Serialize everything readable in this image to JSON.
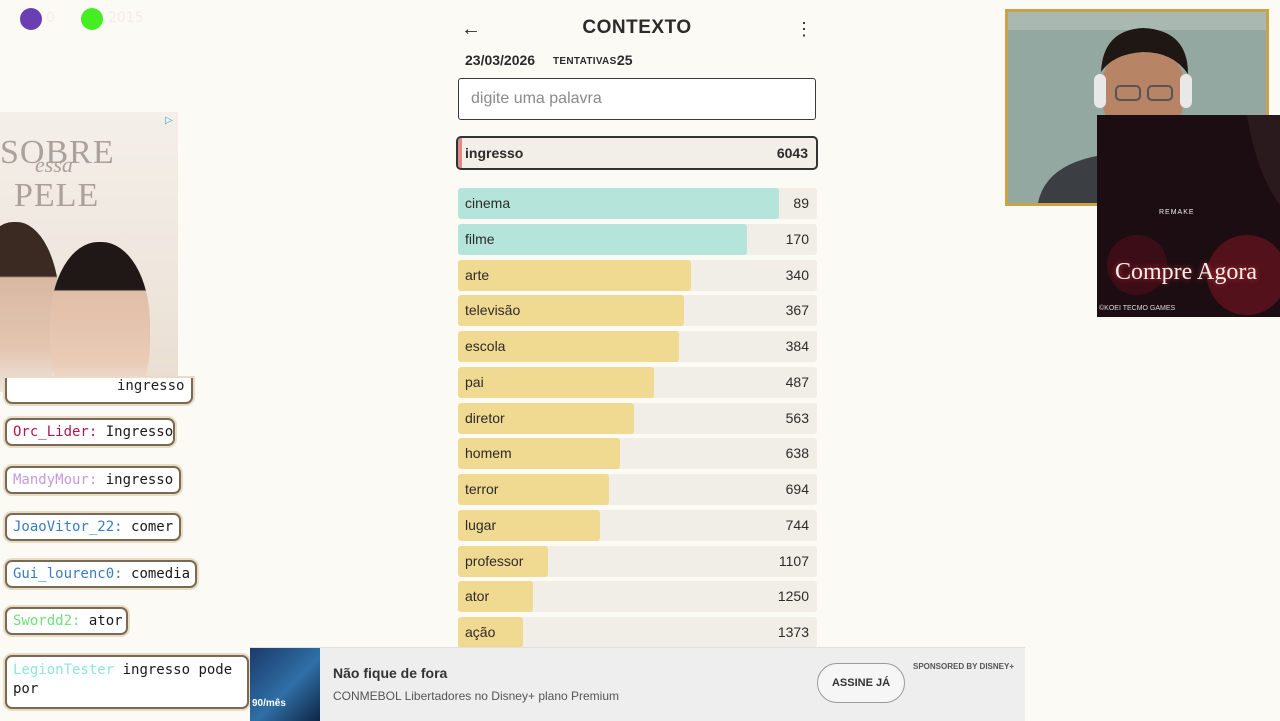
{
  "overlay": {
    "indicator_1": {
      "color": "#6b3fb4",
      "count": "0"
    },
    "indicator_2": {
      "color": "#44ee22",
      "count": "2015"
    }
  },
  "header": {
    "title": "CONTEXTO",
    "date": "23/03/2026",
    "attempts_label": "TENTATIVAS:",
    "attempts_value": "25"
  },
  "search": {
    "placeholder": "digite uma palavra",
    "value": ""
  },
  "last_guess": {
    "word": "ingresso",
    "rank": "6043",
    "color": "#e08787"
  },
  "guesses": [
    {
      "word": "cinema",
      "rank": "89",
      "fill": 0.895,
      "color": "#b4e4da"
    },
    {
      "word": "filme",
      "rank": "170",
      "fill": 0.805,
      "color": "#b4e4da"
    },
    {
      "word": "arte",
      "rank": "340",
      "fill": 0.65,
      "color": "#f0d991"
    },
    {
      "word": "televisão",
      "rank": "367",
      "fill": 0.63,
      "color": "#f0d991"
    },
    {
      "word": "escola",
      "rank": "384",
      "fill": 0.615,
      "color": "#f0d991"
    },
    {
      "word": "pai",
      "rank": "487",
      "fill": 0.545,
      "color": "#f0d991"
    },
    {
      "word": "diretor",
      "rank": "563",
      "fill": 0.49,
      "color": "#f0d991"
    },
    {
      "word": "homem",
      "rank": "638",
      "fill": 0.45,
      "color": "#f0d991"
    },
    {
      "word": "terror",
      "rank": "694",
      "fill": 0.42,
      "color": "#f0d991"
    },
    {
      "word": "lugar",
      "rank": "744",
      "fill": 0.395,
      "color": "#f0d991"
    },
    {
      "word": "professor",
      "rank": "1107",
      "fill": 0.25,
      "color": "#f0d991"
    },
    {
      "word": "ator",
      "rank": "1250",
      "fill": 0.21,
      "color": "#f0d991"
    },
    {
      "word": "ação",
      "rank": "1373",
      "fill": 0.18,
      "color": "#f0d991"
    }
  ],
  "left_ad": {
    "line1": "SOBRE",
    "line2": "essa",
    "line3": "PELE"
  },
  "chat": [
    {
      "user": "Orc_Lider:",
      "text": "Ingresso",
      "color": "#b0174a"
    },
    {
      "user": "MandyMour:",
      "text": "ingresso",
      "color": "#c49adf"
    },
    {
      "user": "JoaoVitor_22:",
      "text": "comer",
      "color": "#3a7cc4"
    },
    {
      "user": "Gui_lourenc0:",
      "text": "comedia",
      "color": "#3a7cc4"
    },
    {
      "user": "Swordd2:",
      "text": "ator",
      "color": "#6fe07a"
    },
    {
      "user": "LegionTester",
      "text": "ingresso pode por",
      "color": "#8ae8d8"
    }
  ],
  "right_ad": {
    "cta": "Compre Agora",
    "brand": "©KOEI TECMO GAMES",
    "tag": "REMAKE"
  },
  "banner": {
    "headline": "Não fique de fora",
    "subtext": "CONMEBOL Libertadores no Disney+ plano Premium",
    "button": "ASSINE JÁ",
    "sponsor": "SPONSORED BY DISNEY+",
    "thumb_price": "90/mês"
  }
}
